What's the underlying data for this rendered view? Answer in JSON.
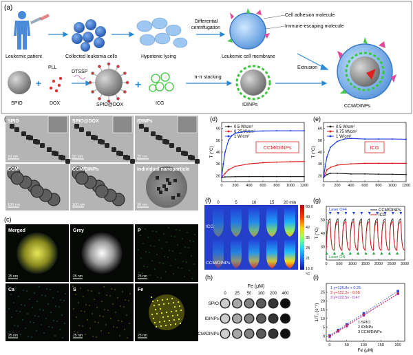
{
  "panel_letters": {
    "a": "(a)",
    "b": "(b)",
    "c": "(c)",
    "d": "(d)",
    "e": "(e)",
    "f": "(f)",
    "g": "(g)",
    "h": "(h)",
    "i": "(i)"
  },
  "schematic": {
    "leukemic_patient": "Leukemic patient",
    "collected_cells": "Collected leukemia cells",
    "hypotonic_lysing": "Hypotonic lysing",
    "differential": "Differential",
    "centrifugation": "centrifugation",
    "cell_adhesion": "Cell adhesion molecule",
    "immune_escaping": "Immune-escaping molecule",
    "leukemic_membrane": "Leukemic cell membrane",
    "extrusion": "Extrusion",
    "ccm_dinps": "CCM/DINPs",
    "spio": "SPIO",
    "dox": "DOX",
    "pll": "PLL",
    "dtssp": "DTSSP",
    "spio_dox": "SPIO@DOX",
    "icg": "ICG",
    "pi_stacking": "π-π stacking",
    "idinps": "IDINPs"
  },
  "tem": {
    "labels": [
      "SPIO",
      "SPIO@DOX",
      "IDINPs",
      "CCM",
      "CCM/DINPs",
      "Individual nanoparticle"
    ],
    "scales": [
      "20 nm",
      "20 nm",
      "20 nm",
      "100 nm",
      "100 nm",
      "20 nm"
    ]
  },
  "eds": {
    "labels": [
      "Merged",
      "Grey",
      "P",
      "Ca",
      "S",
      "Fe"
    ],
    "scale": "25 nm"
  },
  "thermal_images": {
    "times": [
      "0",
      "5",
      "10",
      "15",
      "20 min"
    ],
    "rows": [
      "ICG",
      "CCM/DINPs"
    ],
    "scale_ticks": [
      "60.0",
      "49",
      "42",
      "35",
      "28",
      "21",
      "16.0"
    ],
    "unit": "°C"
  },
  "mri": {
    "title": "Fe (μM)",
    "concentrations": [
      "0",
      "25",
      "50",
      "100",
      "200",
      "400"
    ],
    "rows": [
      "SPIO",
      "IDINPs",
      "CCM/DINPs"
    ]
  },
  "colors": {
    "black": "#222222",
    "red": "#e02020",
    "blue": "#1f3fe0"
  },
  "chart_data": [
    {
      "panel": "d",
      "type": "line",
      "ylabel": "T (°C)",
      "xlim": [
        0,
        1200
      ],
      "ylim": [
        15,
        65
      ],
      "x_ticks": [
        "0",
        "200",
        "400",
        "600",
        "800",
        "1000",
        "1200"
      ],
      "y_ticks": [
        "20",
        "30",
        "40",
        "50",
        "60"
      ],
      "annotation": "CCM/DINPs",
      "series": [
        {
          "name": "0.5 W/cm²",
          "x": [
            0,
            50,
            200,
            400,
            600,
            800,
            1000,
            1200
          ],
          "y": [
            18.5,
            19,
            19.2,
            19.3,
            19.3,
            19.3,
            19.3,
            19.3
          ]
        },
        {
          "name": "0.75 W/cm²",
          "x": [
            0,
            50,
            100,
            200,
            400,
            600,
            800,
            1000,
            1200
          ],
          "y": [
            18.5,
            22,
            25,
            28,
            30,
            31,
            31.5,
            31.8,
            32
          ]
        },
        {
          "name": "1 W/cm²",
          "x": [
            0,
            25,
            50,
            100,
            150,
            200,
            300,
            400,
            600,
            800,
            1000,
            1200
          ],
          "y": [
            18.5,
            30,
            40,
            50,
            54,
            56,
            57,
            57.5,
            57.8,
            58,
            58,
            58
          ]
        }
      ]
    },
    {
      "panel": "e",
      "type": "line",
      "ylabel": "T (°C)",
      "xlim": [
        0,
        1200
      ],
      "ylim": [
        15,
        65
      ],
      "x_ticks": [
        "0",
        "200",
        "400",
        "600",
        "800",
        "1000",
        "1200"
      ],
      "y_ticks": [
        "20",
        "30",
        "40",
        "50",
        "60"
      ],
      "annotation": "ICG",
      "series": [
        {
          "name": "0.5 W/cm²",
          "x": [
            0,
            50,
            100,
            200,
            400,
            600,
            800,
            1000,
            1200
          ],
          "y": [
            18.5,
            21,
            22,
            22,
            21.5,
            21.5,
            21.3,
            21.2,
            21
          ]
        },
        {
          "name": "0.75 W/cm²",
          "x": [
            0,
            50,
            100,
            200,
            400,
            600,
            800,
            1000,
            1200
          ],
          "y": [
            18.5,
            25,
            27,
            29,
            30,
            30.5,
            30.5,
            30.5,
            30.5
          ]
        },
        {
          "name": "1 W/cm²",
          "x": [
            0,
            25,
            50,
            100,
            200,
            300,
            400,
            600,
            800,
            1000,
            1200
          ],
          "y": [
            18.5,
            28,
            36,
            44,
            49,
            51,
            51.5,
            51,
            51,
            51,
            50.8
          ]
        }
      ]
    },
    {
      "panel": "g",
      "type": "line",
      "ylabel": "T (°C)",
      "xlim": [
        0,
        3000
      ],
      "ylim": [
        20,
        60
      ],
      "x_ticks": [
        "0",
        "500",
        "1000",
        "1500",
        "2000",
        "2500",
        "3000"
      ],
      "y_ticks": [
        "30",
        "40",
        "50"
      ],
      "laser_off": "Laser OFF",
      "laser_on": "Laser ON",
      "cycles": 10,
      "series": [
        {
          "name": "CCM/DINPs",
          "peak": 51,
          "base": 27
        },
        {
          "name": "ICG",
          "peak": 49,
          "base": 27
        }
      ]
    },
    {
      "panel": "i",
      "type": "scatter",
      "ylabel": "1/T₂ (s⁻¹)",
      "xlabel": "Fe (μM)",
      "xlim": [
        -10,
        220
      ],
      "ylim": [
        -3,
        30
      ],
      "x_ticks": [
        "0",
        "50",
        "100",
        "150",
        "200"
      ],
      "y_ticks": [
        "0",
        "5",
        "10",
        "15",
        "20",
        "25"
      ],
      "equations": [
        "1 y=126.8x + 0.25",
        "2 y=122.2x - 0.09",
        "3 y=122.5x - 0.47"
      ],
      "legend_names": [
        "1 SPIO",
        "2 IDINPs",
        "3 CCM/DINPs"
      ],
      "series": [
        {
          "name": "SPIO",
          "x": [
            0,
            25,
            50,
            100,
            200
          ],
          "y": [
            0.3,
            3.4,
            6.6,
            12.9,
            25.6
          ]
        },
        {
          "name": "IDINPs",
          "x": [
            0,
            25,
            50,
            100,
            200
          ],
          "y": [
            -0.1,
            3.0,
            6.0,
            12.1,
            24.3
          ]
        },
        {
          "name": "CCM/DINPs",
          "x": [
            0,
            25,
            50,
            100,
            200
          ],
          "y": [
            -0.5,
            2.6,
            5.6,
            11.7,
            24.0
          ]
        }
      ]
    }
  ]
}
